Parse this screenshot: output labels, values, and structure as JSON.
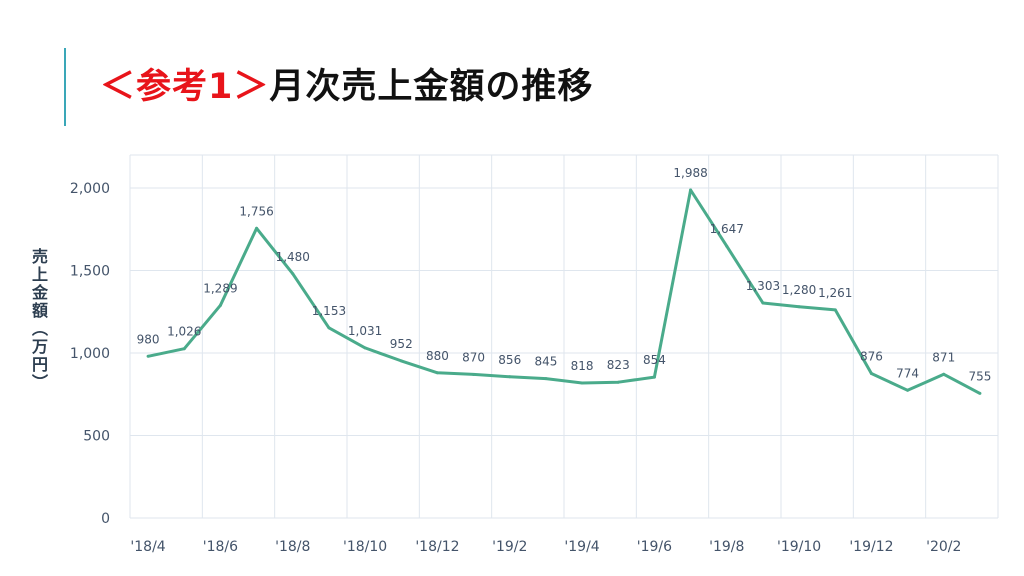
{
  "slide": {
    "title_tag": "＜参考1＞",
    "title_main": "月次売上金額の推移",
    "accent_color": "#3aa7b8",
    "tag_color": "#e8141a"
  },
  "chart_data": {
    "type": "line",
    "ylabel": "売上金額（万円）",
    "xlabel": "",
    "ylim": [
      0,
      2000
    ],
    "yticks": [
      "0",
      "500",
      "1,000",
      "1,500",
      "2,000"
    ],
    "grid": true,
    "x": [
      "'18/4",
      "'18/5",
      "'18/6",
      "'18/7",
      "'18/8",
      "'18/9",
      "'18/10",
      "'18/11",
      "'18/12",
      "'19/1",
      "'19/2",
      "'19/3",
      "'19/4",
      "'19/5",
      "'19/6",
      "'19/7",
      "'19/8",
      "'19/9",
      "'19/10",
      "'19/11",
      "'19/12",
      "'20/1",
      "'20/2",
      "'20/3"
    ],
    "xtick_labels": [
      "'18/4",
      "'18/6",
      "'18/8",
      "'18/10",
      "'18/12",
      "'19/2",
      "'19/4",
      "'19/6",
      "'19/8",
      "'19/10",
      "'19/12",
      "'20/2"
    ],
    "series": [
      {
        "values": [
          980,
          1026,
          1289,
          1756,
          1480,
          1153,
          1031,
          952,
          880,
          870,
          856,
          845,
          818,
          823,
          854,
          1988,
          1647,
          1303,
          1280,
          1261,
          876,
          774,
          871,
          755
        ],
        "labels": [
          "980",
          "1,026",
          "1,289",
          "1,756",
          "1,480",
          "1,153",
          "1,031",
          "952",
          "880",
          "870",
          "856",
          "845",
          "818",
          "823",
          "854",
          "1,988",
          "1,647",
          "1,303",
          "1,280",
          "1,261",
          "876",
          "774",
          "871",
          "755"
        ],
        "color": "#4aab8b"
      }
    ]
  }
}
